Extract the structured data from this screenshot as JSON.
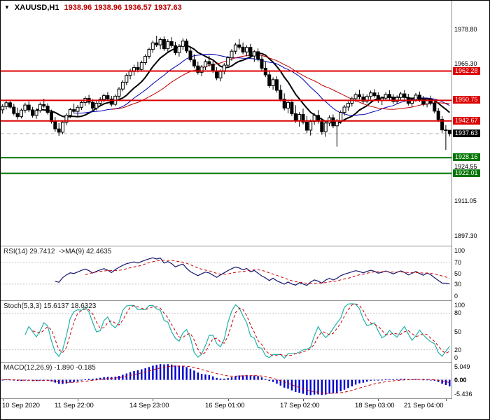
{
  "header": {
    "symbol": "XAUUSD,H1",
    "ohlc": "1938.96 1938.96 1936.57 1937.63"
  },
  "colors": {
    "resistance": "#dd0000",
    "support": "#007500",
    "current_price_badge": "#000000",
    "candle_up": "#ffffff",
    "candle_down": "#000000",
    "rsi_line": "#15156e",
    "signal": "#cc0000",
    "stoch_line": "#20b2aa",
    "macd_bars": "#0000cd",
    "ohlc_text": "#c00000"
  },
  "chart_data": {
    "type": "candlestick",
    "symbol": "XAUUSD",
    "timeframe": "H1",
    "title": "XAUUSD,H1 1938.96 1938.96 1936.57 1937.63",
    "price_axis": {
      "min": 1893.5,
      "max": 1990.0,
      "plain_labels": [
        "1978.80",
        "1965.30",
        "1924.55",
        "1911.05",
        "1897.30"
      ]
    },
    "current_price": 1937.63,
    "levels": [
      {
        "price": 1962.28,
        "color": "#dd0000",
        "type": "resistance"
      },
      {
        "price": 1950.75,
        "color": "#dd0000",
        "type": "resistance"
      },
      {
        "price": 1942.67,
        "color": "#dd0000",
        "type": "resistance"
      },
      {
        "price": 1928.16,
        "color": "#007500",
        "type": "support"
      },
      {
        "price": 1922.01,
        "color": "#007500",
        "type": "support"
      }
    ],
    "moving_averages": [
      {
        "period": 10,
        "color": "#000000",
        "width": 2
      },
      {
        "period": 20,
        "color": "#0000b8",
        "width": 1
      },
      {
        "period": 30,
        "color": "#c00000",
        "width": 1
      }
    ],
    "x_labels": [
      {
        "label": "10 Sep 2020",
        "i": 0
      },
      {
        "label": "11 Sep 22:00",
        "i": 20
      },
      {
        "label": "14 Sep 23:00",
        "i": 40
      },
      {
        "label": "16 Sep 01:00",
        "i": 60
      },
      {
        "label": "17 Sep 02:00",
        "i": 80
      },
      {
        "label": "18 Sep 03:00",
        "i": 100
      },
      {
        "label": "21 Sep 04:00",
        "i": 118
      }
    ],
    "candles": [
      [
        1947.0,
        1949.2,
        1945.5,
        1948.3
      ],
      [
        1948.3,
        1950.6,
        1947.2,
        1949.8
      ],
      [
        1949.8,
        1951.0,
        1947.5,
        1948.1
      ],
      [
        1948.1,
        1949.4,
        1944.8,
        1945.6
      ],
      [
        1945.6,
        1947.9,
        1943.2,
        1944.3
      ],
      [
        1944.3,
        1947.5,
        1943.6,
        1946.9
      ],
      [
        1946.9,
        1949.8,
        1945.8,
        1948.9
      ],
      [
        1948.9,
        1950.3,
        1946.1,
        1947.0
      ],
      [
        1947.0,
        1948.2,
        1943.9,
        1944.8
      ],
      [
        1944.8,
        1947.6,
        1943.5,
        1946.7
      ],
      [
        1946.7,
        1949.9,
        1945.9,
        1949.1
      ],
      [
        1949.1,
        1951.4,
        1947.7,
        1948.5
      ],
      [
        1948.5,
        1949.6,
        1945.2,
        1946.0
      ],
      [
        1946.0,
        1947.1,
        1941.6,
        1942.4
      ],
      [
        1942.4,
        1944.2,
        1938.3,
        1939.5
      ],
      [
        1939.5,
        1941.8,
        1936.8,
        1938.2
      ],
      [
        1938.2,
        1942.9,
        1937.4,
        1942.1
      ],
      [
        1942.1,
        1945.6,
        1941.0,
        1944.9
      ],
      [
        1944.9,
        1947.8,
        1943.7,
        1947.1
      ],
      [
        1947.1,
        1949.5,
        1945.6,
        1946.4
      ],
      [
        1946.4,
        1948.9,
        1944.6,
        1948.0
      ],
      [
        1948.0,
        1950.8,
        1947.0,
        1949.9
      ],
      [
        1949.9,
        1952.3,
        1948.6,
        1951.5
      ],
      [
        1951.5,
        1952.9,
        1949.1,
        1950.0
      ],
      [
        1950.0,
        1951.2,
        1946.9,
        1947.7
      ],
      [
        1947.7,
        1950.4,
        1946.8,
        1949.6
      ],
      [
        1949.6,
        1952.0,
        1948.5,
        1951.1
      ],
      [
        1951.1,
        1953.4,
        1950.0,
        1952.6
      ],
      [
        1952.6,
        1954.0,
        1950.4,
        1951.3
      ],
      [
        1951.3,
        1952.5,
        1948.3,
        1949.2
      ],
      [
        1949.2,
        1953.1,
        1948.6,
        1952.4
      ],
      [
        1952.4,
        1956.0,
        1951.5,
        1955.2
      ],
      [
        1955.2,
        1958.7,
        1954.3,
        1957.9
      ],
      [
        1957.9,
        1961.4,
        1956.8,
        1960.6
      ],
      [
        1960.6,
        1963.2,
        1959.0,
        1962.1
      ],
      [
        1962.1,
        1964.8,
        1960.5,
        1963.7
      ],
      [
        1963.7,
        1965.9,
        1961.8,
        1962.9
      ],
      [
        1962.9,
        1966.4,
        1962.0,
        1965.6
      ],
      [
        1965.6,
        1968.9,
        1964.7,
        1968.1
      ],
      [
        1968.1,
        1971.5,
        1967.2,
        1970.8
      ],
      [
        1970.8,
        1974.3,
        1969.5,
        1973.4
      ],
      [
        1973.4,
        1976.2,
        1971.8,
        1972.6
      ],
      [
        1972.6,
        1975.5,
        1970.9,
        1974.7
      ],
      [
        1974.7,
        1975.9,
        1970.2,
        1971.1
      ],
      [
        1971.1,
        1974.8,
        1969.8,
        1973.9
      ],
      [
        1973.9,
        1975.6,
        1971.4,
        1972.3
      ],
      [
        1972.3,
        1973.8,
        1968.6,
        1969.5
      ],
      [
        1969.5,
        1972.9,
        1968.0,
        1972.0
      ],
      [
        1972.0,
        1975.2,
        1970.7,
        1974.1
      ],
      [
        1974.1,
        1975.0,
        1969.3,
        1970.2
      ],
      [
        1970.2,
        1971.6,
        1965.8,
        1966.7
      ],
      [
        1966.7,
        1968.9,
        1963.4,
        1964.3
      ],
      [
        1964.3,
        1966.0,
        1960.9,
        1961.8
      ],
      [
        1961.8,
        1964.7,
        1960.3,
        1963.9
      ],
      [
        1963.9,
        1966.8,
        1962.7,
        1966.0
      ],
      [
        1966.0,
        1968.3,
        1964.1,
        1965.0
      ],
      [
        1965.0,
        1966.2,
        1961.5,
        1962.4
      ],
      [
        1962.4,
        1963.8,
        1958.7,
        1959.6
      ],
      [
        1959.6,
        1962.9,
        1958.2,
        1962.1
      ],
      [
        1962.1,
        1965.4,
        1961.0,
        1964.6
      ],
      [
        1964.6,
        1968.2,
        1963.7,
        1967.5
      ],
      [
        1967.5,
        1970.9,
        1966.4,
        1970.1
      ],
      [
        1970.1,
        1973.4,
        1969.0,
        1972.6
      ],
      [
        1972.6,
        1974.9,
        1970.8,
        1971.7
      ],
      [
        1971.7,
        1973.5,
        1968.9,
        1969.8
      ],
      [
        1969.8,
        1972.4,
        1968.1,
        1971.6
      ],
      [
        1971.6,
        1973.0,
        1967.3,
        1968.2
      ],
      [
        1968.2,
        1970.6,
        1965.9,
        1969.9
      ],
      [
        1969.9,
        1971.2,
        1966.1,
        1967.0
      ],
      [
        1967.0,
        1968.4,
        1962.5,
        1963.4
      ],
      [
        1963.4,
        1965.8,
        1959.9,
        1960.8
      ],
      [
        1960.8,
        1962.1,
        1955.6,
        1956.5
      ],
      [
        1956.5,
        1959.8,
        1954.9,
        1958.9
      ],
      [
        1958.9,
        1960.2,
        1953.8,
        1954.7
      ],
      [
        1954.7,
        1956.9,
        1950.3,
        1951.2
      ],
      [
        1951.2,
        1953.5,
        1946.8,
        1947.7
      ],
      [
        1947.7,
        1950.9,
        1945.7,
        1949.9
      ],
      [
        1949.9,
        1951.2,
        1944.6,
        1945.5
      ],
      [
        1945.5,
        1948.8,
        1941.9,
        1942.8
      ],
      [
        1942.8,
        1946.1,
        1940.4,
        1945.2
      ],
      [
        1945.2,
        1947.5,
        1941.3,
        1942.2
      ],
      [
        1942.2,
        1944.6,
        1937.8,
        1939.0
      ],
      [
        1939.0,
        1943.2,
        1936.9,
        1942.4
      ],
      [
        1942.4,
        1945.7,
        1941.1,
        1944.8
      ],
      [
        1944.8,
        1946.9,
        1941.6,
        1942.5
      ],
      [
        1942.5,
        1943.8,
        1937.2,
        1938.4
      ],
      [
        1938.4,
        1942.6,
        1936.4,
        1941.8
      ],
      [
        1941.8,
        1944.9,
        1940.6,
        1943.9
      ],
      [
        1943.9,
        1945.2,
        1939.8,
        1940.7
      ],
      [
        1940.7,
        1943.4,
        1932.5,
        1942.6
      ],
      [
        1942.6,
        1946.8,
        1941.5,
        1946.0
      ],
      [
        1946.0,
        1948.9,
        1944.7,
        1948.1
      ],
      [
        1948.1,
        1950.4,
        1946.6,
        1949.6
      ],
      [
        1949.6,
        1952.2,
        1948.3,
        1951.4
      ],
      [
        1951.4,
        1953.8,
        1950.1,
        1953.0
      ],
      [
        1953.0,
        1954.9,
        1951.2,
        1952.1
      ],
      [
        1952.1,
        1953.4,
        1949.5,
        1950.4
      ],
      [
        1950.4,
        1953.1,
        1949.6,
        1952.3
      ],
      [
        1952.3,
        1954.6,
        1951.1,
        1953.7
      ],
      [
        1953.7,
        1955.2,
        1951.8,
        1952.6
      ],
      [
        1952.6,
        1953.9,
        1949.8,
        1950.7
      ],
      [
        1950.7,
        1952.4,
        1948.9,
        1951.6
      ],
      [
        1951.6,
        1953.9,
        1950.6,
        1953.1
      ],
      [
        1953.1,
        1954.7,
        1950.9,
        1951.8
      ],
      [
        1951.8,
        1953.2,
        1949.4,
        1950.3
      ],
      [
        1950.3,
        1952.7,
        1949.2,
        1951.9
      ],
      [
        1951.9,
        1954.1,
        1950.7,
        1953.3
      ],
      [
        1953.3,
        1954.8,
        1951.0,
        1951.9
      ],
      [
        1951.9,
        1953.3,
        1948.7,
        1949.6
      ],
      [
        1949.6,
        1951.9,
        1948.1,
        1951.0
      ],
      [
        1951.0,
        1953.6,
        1950.2,
        1952.8
      ],
      [
        1952.8,
        1954.2,
        1950.1,
        1951.0
      ],
      [
        1951.0,
        1952.5,
        1948.4,
        1949.3
      ],
      [
        1949.3,
        1951.8,
        1948.0,
        1951.2
      ],
      [
        1951.2,
        1952.6,
        1948.8,
        1949.7
      ],
      [
        1949.7,
        1950.9,
        1945.6,
        1946.5
      ],
      [
        1946.5,
        1947.8,
        1942.3,
        1943.2
      ],
      [
        1943.2,
        1944.5,
        1937.9,
        1939.1
      ],
      [
        1939.1,
        1941.0,
        1931.2,
        1938.96
      ],
      [
        1938.96,
        1938.96,
        1936.57,
        1937.63
      ]
    ],
    "indicators": {
      "rsi": {
        "label": "RSI(14) 29.7412  ->MA(9) 42.4635",
        "period": 14,
        "ma_period": 9,
        "last": 29.7412,
        "ma_last": 42.4635,
        "axis_labels": [
          100,
          70,
          50,
          30,
          0
        ],
        "level_lines": [
          70,
          30
        ]
      },
      "stoch": {
        "label": "Stoch(5,3,3) 15.6137 18.6323",
        "k": 5,
        "d": 3,
        "slowing": 3,
        "last": 15.6137,
        "signal_last": 18.6323,
        "axis_labels": [
          100,
          80,
          50,
          20,
          0
        ],
        "level_lines": [
          80,
          20
        ]
      },
      "macd": {
        "label": "MACD(12,26,9) -1.890 -0.185",
        "fast": 12,
        "slow": 26,
        "signal": 9,
        "last": -1.89,
        "signal_last": -0.185,
        "axis_labels": [
          "5.049",
          "0.00",
          "-5.436"
        ],
        "max": 5.049,
        "min": -5.436
      }
    }
  }
}
